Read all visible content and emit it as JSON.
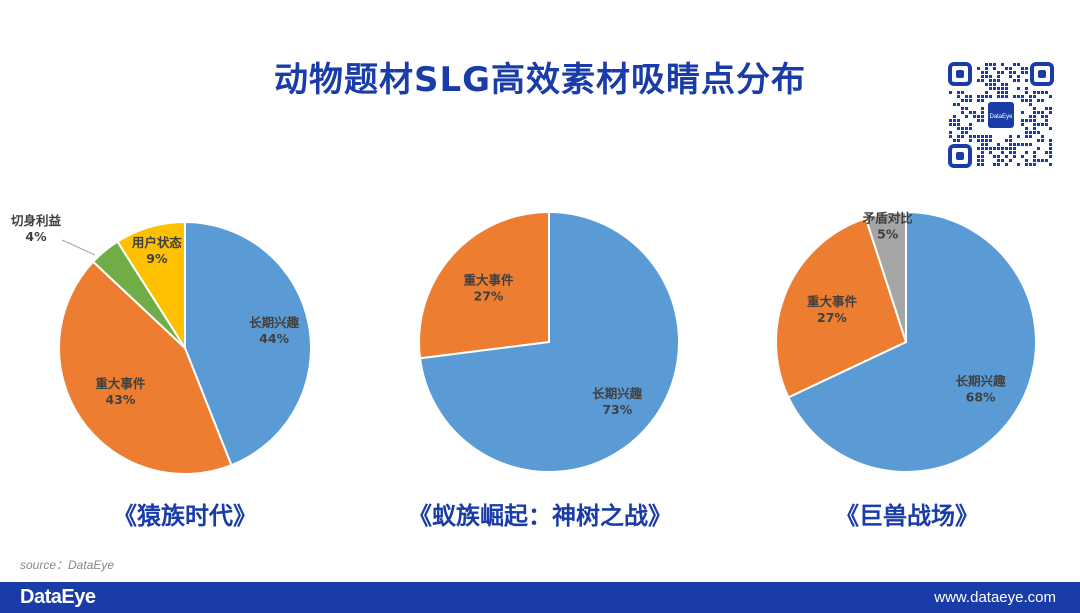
{
  "page": {
    "title": "动物题材SLG高效素材吸睛点分布",
    "source": "source：DataEye",
    "footer_logo": "DataEye",
    "footer_url": "www.dataeye.com",
    "qr_badge": "DataEye"
  },
  "colors": {
    "长期兴趣": "#5b9bd5",
    "重大事件": "#ed7d31",
    "切身利益": "#70ad47",
    "用户状态": "#ffc000",
    "矛盾对比": "#a5a5a5",
    "brand": "#1a3ca8"
  },
  "chart_data": [
    {
      "type": "pie",
      "title": "《猿族时代》",
      "slices": [
        {
          "label": "长期兴趣",
          "value": 44,
          "display": "44%"
        },
        {
          "label": "重大事件",
          "value": 43,
          "display": "43%"
        },
        {
          "label": "切身利益",
          "value": 4,
          "display": "4%"
        },
        {
          "label": "用户状态",
          "value": 9,
          "display": "9%"
        }
      ]
    },
    {
      "type": "pie",
      "title": "《蚁族崛起：神树之战》",
      "slices": [
        {
          "label": "长期兴趣",
          "value": 73,
          "display": "73%"
        },
        {
          "label": "重大事件",
          "value": 27,
          "display": "27%"
        }
      ]
    },
    {
      "type": "pie",
      "title": "《巨兽战场》",
      "slices": [
        {
          "label": "长期兴趣",
          "value": 68,
          "display": "68%"
        },
        {
          "label": "重大事件",
          "value": 27,
          "display": "27%"
        },
        {
          "label": "矛盾对比",
          "value": 5,
          "display": "5%"
        }
      ]
    }
  ]
}
